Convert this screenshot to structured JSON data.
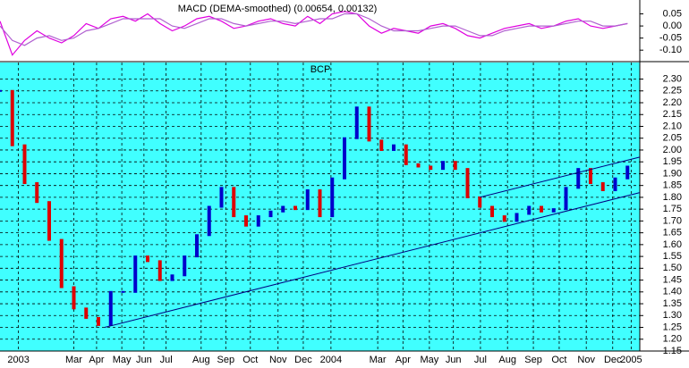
{
  "chart_data": [
    {
      "type": "line",
      "title": "MACD (DEMA-smoothed) (0.00654, 0.00132)",
      "x": [
        0,
        2,
        4,
        6,
        8,
        10,
        12,
        14,
        16,
        18,
        20,
        22,
        24,
        26,
        28,
        30,
        32,
        34,
        36,
        38,
        40,
        42,
        44,
        46,
        48,
        50,
        52,
        54,
        56,
        58,
        60,
        62,
        64,
        66,
        68,
        70,
        72,
        74,
        76,
        78,
        80,
        82,
        84,
        86,
        88,
        90,
        92,
        94,
        96,
        98,
        100,
        102
      ],
      "series": [
        {
          "color": "#e000e0",
          "values": [
            0.02,
            -0.12,
            -0.06,
            -0.02,
            -0.05,
            -0.07,
            -0.04,
            0.01,
            -0.01,
            0.03,
            0.04,
            0.02,
            0.05,
            0.01,
            -0.02,
            0.0,
            0.03,
            0.04,
            0.02,
            -0.01,
            0.0,
            0.02,
            0.03,
            0.01,
            0.0,
            0.04,
            0.01,
            0.05,
            0.06,
            0.05,
            0.0,
            -0.03,
            -0.01,
            -0.02,
            -0.03,
            0.0,
            0.01,
            -0.01,
            -0.04,
            -0.05,
            -0.03,
            -0.01,
            0.0,
            0.01,
            -0.01,
            0.0,
            0.02,
            0.03,
            0.0,
            -0.01,
            0.0,
            0.01
          ]
        },
        {
          "color": "#b060d0",
          "values": [
            0.0,
            -0.06,
            -0.08,
            -0.05,
            -0.04,
            -0.06,
            -0.05,
            -0.02,
            -0.01,
            0.01,
            0.03,
            0.03,
            0.03,
            0.03,
            0.0,
            -0.01,
            0.01,
            0.03,
            0.03,
            0.01,
            0.0,
            0.01,
            0.02,
            0.02,
            0.01,
            0.02,
            0.03,
            0.03,
            0.05,
            0.05,
            0.03,
            0.0,
            -0.02,
            -0.02,
            -0.02,
            -0.01,
            0.0,
            0.0,
            -0.02,
            -0.04,
            -0.04,
            -0.02,
            -0.01,
            0.0,
            0.0,
            0.0,
            0.01,
            0.02,
            0.02,
            0.0,
            0.0,
            0.01
          ]
        }
      ],
      "xlim": [
        0,
        104
      ],
      "ylim": [
        -0.14,
        0.1
      ],
      "yticks": [
        0.05,
        {
          "value": 0,
          "label": "0.00"
        },
        -0.05,
        {
          "value": -0.1,
          "label": "-0.10"
        }
      ]
    },
    {
      "type": "price-bars",
      "title": "BCP",
      "x": [
        0,
        2,
        4,
        6,
        8,
        10,
        12,
        14,
        16,
        18,
        20,
        22,
        24,
        26,
        28,
        30,
        32,
        34,
        36,
        38,
        40,
        42,
        44,
        46,
        48,
        50,
        52,
        54,
        56,
        58,
        60,
        62,
        64,
        66,
        68,
        70,
        72,
        74,
        76,
        78,
        80,
        82,
        84,
        86,
        88,
        90,
        92,
        94,
        96,
        98,
        100,
        102
      ],
      "values": [
        2.25,
        2.02,
        1.86,
        1.78,
        1.62,
        1.42,
        1.33,
        1.29,
        1.26,
        1.4,
        1.4,
        1.55,
        1.53,
        1.45,
        1.47,
        1.55,
        1.64,
        1.76,
        1.84,
        1.72,
        1.68,
        1.72,
        1.74,
        1.76,
        1.75,
        1.83,
        1.72,
        1.88,
        2.05,
        2.18,
        2.04,
        2.0,
        2.02,
        1.94,
        1.93,
        1.92,
        1.95,
        1.92,
        1.8,
        1.76,
        1.72,
        1.7,
        1.73,
        1.76,
        1.74,
        1.75,
        1.84,
        1.92,
        1.86,
        1.83,
        1.88,
        1.93
      ],
      "up_color": "#0000cc",
      "down_color": "#dd0000",
      "background": "#40ffff",
      "lines": [
        {
          "x": [
            17,
            104
          ],
          "y": [
            1.25,
            1.82
          ]
        },
        {
          "x": [
            78,
            104
          ],
          "y": [
            1.8,
            1.97
          ]
        }
      ],
      "xlim": [
        0,
        104
      ],
      "ylim": [
        1.15,
        2.37
      ],
      "grid": true,
      "xticks": [
        {
          "value": 3,
          "label": "2003"
        },
        {
          "value": 12,
          "label": "Mar"
        },
        {
          "value": 15.7,
          "label": "Apr"
        },
        {
          "value": 19.8,
          "label": "May"
        },
        {
          "value": 23.4,
          "label": "Jun"
        },
        {
          "value": 27,
          "label": "Jul"
        },
        {
          "value": 32.7,
          "label": "Aug"
        },
        {
          "value": 36.7,
          "label": "Sep"
        },
        {
          "value": 40.7,
          "label": "Oct"
        },
        {
          "value": 45.2,
          "label": "Nov"
        },
        {
          "value": 49.3,
          "label": "Dec"
        },
        {
          "value": 53.8,
          "label": "2004"
        },
        {
          "value": 61.4,
          "label": "Mar"
        },
        {
          "value": 65.5,
          "label": "Apr"
        },
        {
          "value": 69.8,
          "label": "May"
        },
        {
          "value": 73.7,
          "label": "Jun"
        },
        {
          "value": 78.1,
          "label": "Jul"
        },
        {
          "value": 82.5,
          "label": "Aug"
        },
        {
          "value": 86.7,
          "label": "Sep"
        },
        {
          "value": 90.9,
          "label": "Oct"
        },
        {
          "value": 95.3,
          "label": "Nov"
        },
        {
          "value": 99.6,
          "label": "Dec"
        },
        {
          "value": 102.6,
          "label": "2005"
        }
      ],
      "yticks": [
        {
          "value": 2.3,
          "label": "2.30"
        },
        2.25,
        {
          "value": 2.2,
          "label": "2.20"
        },
        2.15,
        {
          "value": 2.1,
          "label": "2.10"
        },
        2.05,
        {
          "value": 2,
          "label": "2.00"
        },
        1.95,
        {
          "value": 1.9,
          "label": "1.90"
        },
        1.85,
        {
          "value": 1.8,
          "label": "1.80"
        },
        1.75,
        {
          "value": 1.7,
          "label": "1.70"
        },
        1.65,
        {
          "value": 1.6,
          "label": "1.60"
        },
        1.55,
        {
          "value": 1.5,
          "label": "1.50"
        },
        1.45,
        {
          "value": 1.4,
          "label": "1.40"
        },
        1.35,
        {
          "value": 1.3,
          "label": "1.30"
        },
        1.25,
        {
          "value": 1.2,
          "label": "1.20"
        },
        1.15
      ]
    }
  ]
}
